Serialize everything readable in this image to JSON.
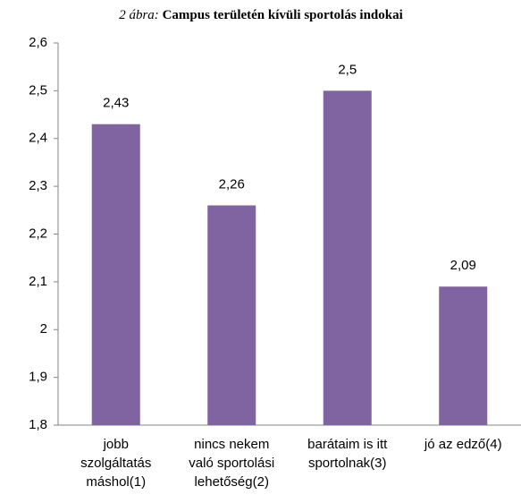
{
  "chart_data": {
    "type": "bar",
    "title_prefix": "2 ábra:",
    "title": "Campus területén kívüli sportolás indokai",
    "categories": [
      "jobb\nszolgáltatás\nmáshol(1)",
      "nincs nekem\nvaló sportolási\nlehetőség(2)",
      "barátaim is itt\nsportolnak(3)",
      "jó az edző(4)"
    ],
    "values": [
      2.43,
      2.26,
      2.5,
      2.09
    ],
    "value_labels": [
      "2,43",
      "2,26",
      "2,5",
      "2,09"
    ],
    "color": "#8064a2",
    "ylim": [
      1.8,
      2.6
    ],
    "yticks": [
      {
        "value": 1.8,
        "label": "1,8"
      },
      {
        "value": 1.9,
        "label": "1,9"
      },
      2,
      {
        "value": 2.1,
        "label": "2,1"
      },
      {
        "value": 2.2,
        "label": "2,2"
      },
      {
        "value": 2.3,
        "label": "2,3"
      },
      {
        "value": 2.4,
        "label": "2,4"
      },
      {
        "value": 2.5,
        "label": "2,5"
      },
      {
        "value": 2.6,
        "label": "2,6"
      }
    ],
    "grid": false
  }
}
